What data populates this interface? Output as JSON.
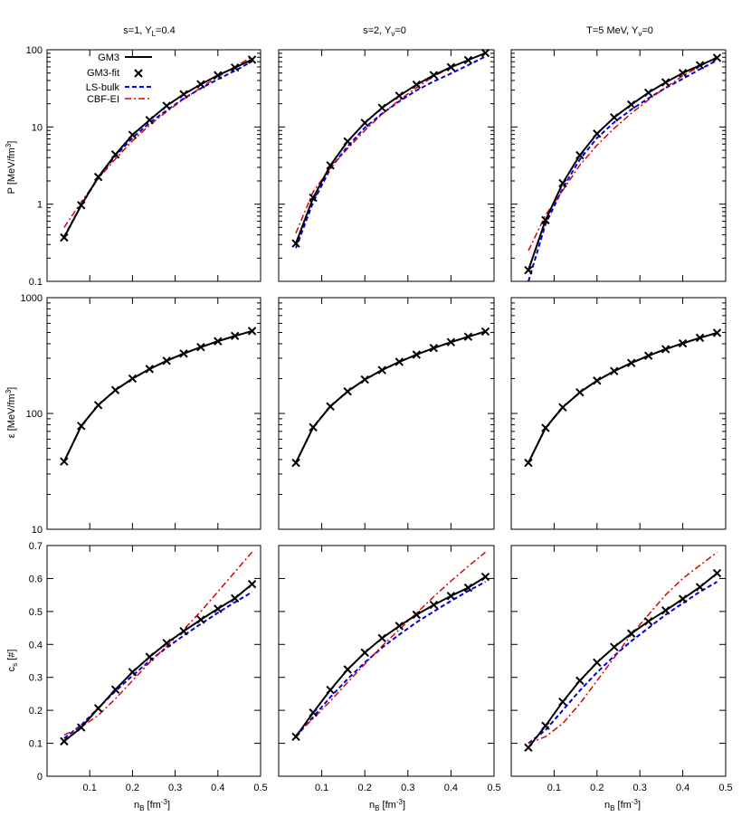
{
  "colors": {
    "gm3": "#000000",
    "gm3_fit": "#000000",
    "ls_bulk": "#0000e0",
    "cbf_ei": "#e00000"
  },
  "legend": {
    "entries": [
      {
        "label": "GM3",
        "style": "solid-line",
        "color": "#000000"
      },
      {
        "label": "GM3-fit",
        "style": "cross-marker",
        "color": "#000000"
      },
      {
        "label": "LS-bulk",
        "style": "dashed-line",
        "color": "#0000e0"
      },
      {
        "label": "CBF-EI",
        "style": "dash-dot-line",
        "color": "#e00000"
      }
    ],
    "placement": "top-left of first panel"
  },
  "columns": [
    {
      "title": "s=1, Y",
      "title_sub": "L",
      "title_rest": "=0.4"
    },
    {
      "title": "s=2, Y",
      "title_sub": "ν",
      "title_rest": "=0"
    },
    {
      "title": "T=5 MeV, Y",
      "title_sub": "ν",
      "title_rest": "=0"
    }
  ],
  "rows": [
    {
      "ylabel_main": "P [MeV/fm",
      "ylabel_sup": "3",
      "ylabel_end": "]",
      "scale": "log",
      "ylim": [
        0.1,
        100
      ],
      "ticks": [
        "0.1",
        "1",
        "10",
        "100"
      ],
      "tick_values": [
        0.1,
        1,
        10,
        100
      ]
    },
    {
      "ylabel_main": "ε [MeV/fm",
      "ylabel_sup": "3",
      "ylabel_end": "]",
      "scale": "log",
      "ylim": [
        10,
        1000
      ],
      "ticks": [
        "10",
        "100",
        "1000"
      ],
      "tick_values": [
        10,
        100,
        1000
      ]
    },
    {
      "ylabel_main": "c",
      "ylabel_sub": "s",
      "ylabel_end": " [#]",
      "scale": "linear",
      "ylim": [
        0,
        0.7
      ],
      "ticks": [
        "0",
        "0.1",
        "0.2",
        "0.3",
        "0.4",
        "0.5",
        "0.6",
        "0.7"
      ],
      "tick_values": [
        0,
        0.1,
        0.2,
        0.3,
        0.4,
        0.5,
        0.6,
        0.7
      ]
    }
  ],
  "xaxis": {
    "label_main": "n",
    "label_sub": "B",
    "label_mid": " [fm",
    "label_sup": "-3",
    "label_end": "]",
    "xlim": [
      0,
      0.5
    ],
    "ticks": [
      "0.1",
      "0.2",
      "0.3",
      "0.4",
      "0.5"
    ],
    "tick_values": [
      0.1,
      0.2,
      0.3,
      0.4,
      0.5
    ]
  },
  "chart_data": [
    {
      "type": "line",
      "panel": "row1-col1",
      "x": [
        0.04,
        0.08,
        0.12,
        0.16,
        0.2,
        0.24,
        0.28,
        0.32,
        0.36,
        0.4,
        0.44,
        0.48
      ],
      "series": [
        {
          "name": "GM3",
          "values": [
            0.37,
            0.97,
            2.25,
            4.4,
            7.9,
            12.3,
            18.8,
            26.5,
            35.7,
            46.7,
            58.8,
            74.5
          ]
        },
        {
          "name": "GM3-fit",
          "values": [
            0.37,
            0.97,
            2.25,
            4.4,
            7.9,
            12.3,
            18.8,
            26.5,
            35.7,
            46.7,
            58.8,
            74.5
          ]
        },
        {
          "name": "LS-bulk",
          "values": [
            0.38,
            0.97,
            2.2,
            4.2,
            7.2,
            11.3,
            16.4,
            23.3,
            31.6,
            41.5,
            53.6,
            70.6
          ]
        },
        {
          "name": "CBF-EI",
          "values": [
            0.5,
            1.07,
            2.15,
            3.85,
            6.6,
            10.5,
            15.8,
            22.9,
            32.3,
            44.6,
            60.3,
            81
          ]
        }
      ]
    },
    {
      "type": "line",
      "panel": "row1-col2",
      "x": [
        0.04,
        0.08,
        0.12,
        0.16,
        0.2,
        0.24,
        0.28,
        0.32,
        0.36,
        0.4,
        0.44,
        0.48
      ],
      "series": [
        {
          "name": "GM3",
          "values": [
            0.31,
            1.21,
            3.18,
            6.5,
            11.3,
            17.7,
            25.4,
            35.3,
            46.9,
            59.5,
            73.4,
            90.9
          ]
        },
        {
          "name": "GM3-fit",
          "values": [
            0.31,
            1.21,
            3.18,
            6.5,
            11.3,
            17.7,
            25.4,
            35.3,
            46.9,
            59.5,
            73.4,
            90.9
          ]
        },
        {
          "name": "LS-bulk",
          "values": [
            0.27,
            1.06,
            2.9,
            5.6,
            9.8,
            14.9,
            21.4,
            29.8,
            38.9,
            49.3,
            63.2,
            82
          ]
        },
        {
          "name": "CBF-EI",
          "values": [
            0.42,
            1.45,
            2.95,
            5.25,
            9.0,
            14.6,
            22.3,
            32.3,
            45.3,
            59,
            73.2,
            90.5
          ]
        }
      ]
    },
    {
      "type": "line",
      "panel": "row1-col3",
      "x": [
        0.04,
        0.08,
        0.12,
        0.16,
        0.2,
        0.24,
        0.28,
        0.32,
        0.36,
        0.4,
        0.44,
        0.48
      ],
      "series": [
        {
          "name": "GM3",
          "values": [
            0.14,
            0.62,
            1.87,
            4.3,
            8.2,
            13.3,
            19.5,
            27.8,
            37.8,
            50,
            63.1,
            78.6
          ]
        },
        {
          "name": "GM3-fit",
          "values": [
            0.14,
            0.62,
            1.87,
            4.3,
            8.2,
            13.3,
            19.5,
            27.8,
            37.8,
            50,
            63.1,
            78.6
          ]
        },
        {
          "name": "LS-bulk",
          "values": [
            0.1,
            0.55,
            1.6,
            3.8,
            7.2,
            11.5,
            16.8,
            23.5,
            32,
            42,
            56,
            73
          ]
        },
        {
          "name": "CBF-EI",
          "values": [
            0.25,
            0.72,
            1.5,
            3.2,
            5.8,
            9.6,
            15,
            22.5,
            32.5,
            46,
            61,
            81
          ]
        }
      ]
    },
    {
      "type": "line",
      "panel": "row2-col1",
      "x": [
        0.04,
        0.08,
        0.12,
        0.16,
        0.2,
        0.24,
        0.28,
        0.32,
        0.36,
        0.4,
        0.44,
        0.48
      ],
      "series": [
        {
          "name": "GM3",
          "values": [
            38.5,
            78,
            118,
            159,
            200,
            242,
            285,
            329,
            374,
            420,
            467,
            515
          ]
        },
        {
          "name": "GM3-fit",
          "values": [
            38.5,
            78,
            118,
            159,
            200,
            242,
            285,
            329,
            374,
            420,
            467,
            515
          ]
        },
        {
          "name": "LS-bulk",
          "values": [
            38.5,
            78,
            118,
            159,
            200,
            242,
            285,
            329,
            374,
            420,
            467,
            515
          ]
        },
        {
          "name": "CBF-EI",
          "values": [
            38.5,
            78,
            118,
            159,
            200,
            242,
            285,
            329,
            374,
            420,
            467,
            515
          ]
        }
      ]
    },
    {
      "type": "line",
      "panel": "row2-col2",
      "x": [
        0.04,
        0.08,
        0.12,
        0.16,
        0.2,
        0.24,
        0.28,
        0.32,
        0.36,
        0.4,
        0.44,
        0.48
      ],
      "series": [
        {
          "name": "GM3",
          "values": [
            37.5,
            76,
            115,
            155,
            196,
            237,
            279,
            322,
            367,
            413,
            460,
            510
          ]
        },
        {
          "name": "GM3-fit",
          "values": [
            37.5,
            76,
            115,
            155,
            196,
            237,
            279,
            322,
            367,
            413,
            460,
            510
          ]
        },
        {
          "name": "LS-bulk",
          "values": [
            37.5,
            76,
            115,
            155,
            196,
            237,
            279,
            322,
            367,
            413,
            460,
            510
          ]
        },
        {
          "name": "CBF-EI",
          "values": [
            37.5,
            76,
            115,
            155,
            196,
            237,
            279,
            322,
            367,
            413,
            460,
            510
          ]
        }
      ]
    },
    {
      "type": "line",
      "panel": "row2-col3",
      "x": [
        0.04,
        0.08,
        0.12,
        0.16,
        0.2,
        0.24,
        0.28,
        0.32,
        0.36,
        0.4,
        0.44,
        0.48
      ],
      "series": [
        {
          "name": "GM3",
          "values": [
            37.5,
            75,
            113,
            152,
            192,
            232,
            273,
            315,
            359,
            403,
            450,
            497
          ]
        },
        {
          "name": "GM3-fit",
          "values": [
            37.5,
            75,
            113,
            152,
            192,
            232,
            273,
            315,
            359,
            403,
            450,
            497
          ]
        },
        {
          "name": "LS-bulk",
          "values": [
            37.5,
            75,
            113,
            152,
            192,
            232,
            273,
            315,
            359,
            403,
            450,
            497
          ]
        },
        {
          "name": "CBF-EI",
          "values": [
            37.5,
            75,
            113,
            152,
            192,
            232,
            273,
            315,
            359,
            403,
            450,
            497
          ]
        }
      ]
    },
    {
      "type": "line",
      "panel": "row3-col1",
      "x": [
        0.04,
        0.08,
        0.12,
        0.16,
        0.2,
        0.24,
        0.28,
        0.32,
        0.36,
        0.4,
        0.44,
        0.48
      ],
      "series": [
        {
          "name": "GM3",
          "values": [
            0.106,
            0.148,
            0.206,
            0.263,
            0.316,
            0.362,
            0.404,
            0.44,
            0.475,
            0.508,
            0.54,
            0.583
          ]
        },
        {
          "name": "GM3-fit",
          "values": [
            0.106,
            0.148,
            0.206,
            0.263,
            0.316,
            0.362,
            0.404,
            0.44,
            0.475,
            0.508,
            0.54,
            0.583
          ]
        },
        {
          "name": "LS-bulk",
          "values": [
            0.115,
            0.155,
            0.207,
            0.258,
            0.305,
            0.35,
            0.39,
            0.427,
            0.462,
            0.496,
            0.528,
            0.559
          ]
        },
        {
          "name": "CBF-EI",
          "values": [
            0.125,
            0.15,
            0.185,
            0.235,
            0.29,
            0.345,
            0.395,
            0.445,
            0.5,
            0.56,
            0.62,
            0.68
          ]
        }
      ]
    },
    {
      "type": "line",
      "panel": "row3-col2",
      "x": [
        0.04,
        0.08,
        0.12,
        0.16,
        0.2,
        0.24,
        0.28,
        0.32,
        0.36,
        0.4,
        0.44,
        0.48
      ],
      "series": [
        {
          "name": "GM3",
          "values": [
            0.12,
            0.193,
            0.262,
            0.324,
            0.375,
            0.419,
            0.456,
            0.49,
            0.52,
            0.547,
            0.572,
            0.605
          ]
        },
        {
          "name": "GM3-fit",
          "values": [
            0.12,
            0.193,
            0.262,
            0.324,
            0.375,
            0.419,
            0.456,
            0.49,
            0.52,
            0.547,
            0.572,
            0.605
          ]
        },
        {
          "name": "LS-bulk",
          "values": [
            0.12,
            0.18,
            0.24,
            0.295,
            0.345,
            0.39,
            0.43,
            0.467,
            0.5,
            0.532,
            0.562,
            0.59
          ]
        },
        {
          "name": "CBF-EI",
          "values": [
            0.125,
            0.175,
            0.228,
            0.285,
            0.34,
            0.395,
            0.445,
            0.495,
            0.545,
            0.592,
            0.637,
            0.68
          ]
        }
      ]
    },
    {
      "type": "line",
      "panel": "row3-col3",
      "x": [
        0.04,
        0.08,
        0.12,
        0.16,
        0.2,
        0.24,
        0.28,
        0.32,
        0.36,
        0.4,
        0.44,
        0.48
      ],
      "series": [
        {
          "name": "GM3",
          "values": [
            0.087,
            0.153,
            0.226,
            0.29,
            0.345,
            0.392,
            0.433,
            0.47,
            0.503,
            0.538,
            0.574,
            0.616
          ]
        },
        {
          "name": "GM3-fit",
          "values": [
            0.087,
            0.153,
            0.226,
            0.29,
            0.345,
            0.392,
            0.433,
            0.47,
            0.503,
            0.538,
            0.574,
            0.616
          ]
        },
        {
          "name": "LS-bulk",
          "values": [
            0.1,
            0.14,
            0.2,
            0.26,
            0.315,
            0.365,
            0.41,
            0.45,
            0.49,
            0.525,
            0.56,
            0.59
          ]
        },
        {
          "name": "CBF-EI",
          "values": [
            0.1,
            0.12,
            0.16,
            0.22,
            0.29,
            0.36,
            0.43,
            0.49,
            0.55,
            0.6,
            0.64,
            0.68
          ]
        }
      ]
    }
  ]
}
